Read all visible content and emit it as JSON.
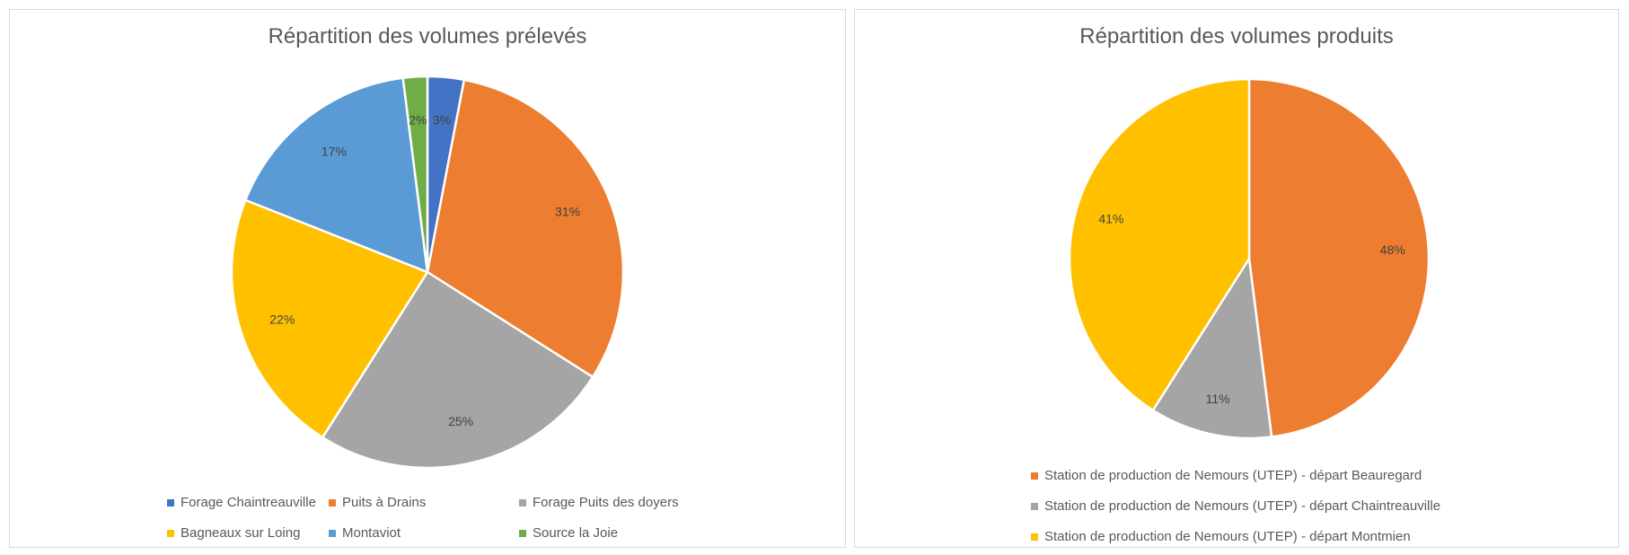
{
  "chart_data": [
    {
      "type": "pie",
      "title": "Répartition des volumes prélevés",
      "legend": "bottom",
      "slices": [
        {
          "label": "Forage Chaintreauville",
          "value": 3,
          "display": "3%",
          "color": "#4472C4"
        },
        {
          "label": "Puits à Drains",
          "value": 31,
          "display": "31%",
          "color": "#ED7D31"
        },
        {
          "label": "Forage Puits des doyers",
          "value": 25,
          "display": "25%",
          "color": "#A5A5A5"
        },
        {
          "label": "Bagneaux sur Loing",
          "value": 22,
          "display": "22%",
          "color": "#FFC000"
        },
        {
          "label": "Montaviot",
          "value": 17,
          "display": "17%",
          "color": "#5B9BD5"
        },
        {
          "label": "Source la Joie",
          "value": 2,
          "display": "2%",
          "color": "#70AD47"
        }
      ]
    },
    {
      "type": "pie",
      "title": "Répartition des volumes produits",
      "legend": "bottom",
      "slices": [
        {
          "label": "Station de production de Nemours (UTEP) - départ Beauregard",
          "value": 48,
          "display": "48%",
          "color": "#ED7D31"
        },
        {
          "label": "Station de production de Nemours (UTEP) - départ Chaintreauville",
          "value": 11,
          "display": "11%",
          "color": "#A5A5A5"
        },
        {
          "label": "Station de production de Nemours (UTEP) - départ Montmien",
          "value": 41,
          "display": "41%",
          "color": "#FFC000"
        }
      ]
    }
  ]
}
